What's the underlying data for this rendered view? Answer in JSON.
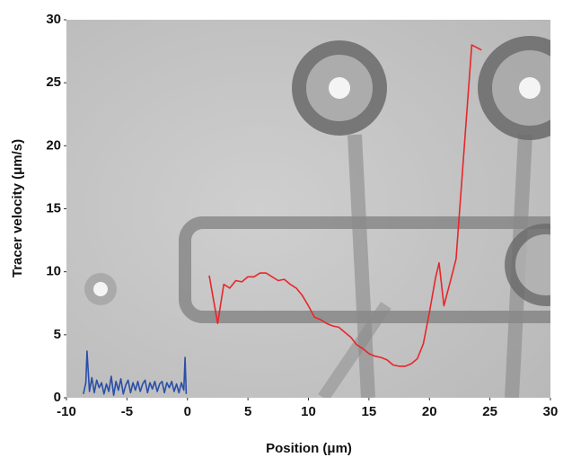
{
  "chart_data": {
    "type": "line",
    "x_label": "Position (μm)",
    "y_label": "Tracer velocity (μm/s)",
    "xlim": [
      -10,
      30
    ],
    "xticks": [
      -10,
      -5,
      0,
      5,
      10,
      15,
      20,
      25,
      30
    ],
    "ylim": [
      0,
      30
    ],
    "yticks": [
      0,
      5,
      10,
      15,
      20,
      25,
      30
    ],
    "series": [
      {
        "color": "#2a4fa8",
        "x": [
          -8.6,
          -8.4,
          -8.3,
          -8.1,
          -7.9,
          -7.7,
          -7.5,
          -7.3,
          -7.1,
          -6.9,
          -6.7,
          -6.5,
          -6.3,
          -6.1,
          -5.9,
          -5.7,
          -5.5,
          -5.3,
          -5.1,
          -4.9,
          -4.7,
          -4.5,
          -4.3,
          -4.1,
          -3.9,
          -3.7,
          -3.5,
          -3.3,
          -3.1,
          -2.9,
          -2.7,
          -2.5,
          -2.3,
          -2.1,
          -1.9,
          -1.7,
          -1.5,
          -1.3,
          -1.1,
          -0.9,
          -0.7,
          -0.5,
          -0.3,
          -0.2,
          -0.1
        ],
        "values": [
          0.3,
          1.2,
          3.7,
          0.5,
          1.6,
          0.4,
          1.4,
          0.8,
          1.2,
          0.3,
          1.1,
          0.5,
          1.7,
          0.2,
          1.3,
          0.6,
          1.5,
          0.3,
          1.0,
          1.4,
          0.4,
          1.2,
          0.6,
          1.3,
          0.5,
          1.1,
          1.4,
          0.4,
          1.2,
          0.7,
          1.3,
          0.5,
          1.1,
          1.3,
          0.4,
          1.2,
          0.8,
          1.3,
          0.5,
          1.1,
          0.4,
          1.2,
          0.6,
          3.2,
          0.3
        ]
      },
      {
        "color": "#e8262a",
        "x": [
          1.8,
          2.5,
          3,
          3.5,
          4,
          4.5,
          5,
          5.5,
          6,
          6.5,
          7,
          7.5,
          8,
          8.5,
          9,
          9.5,
          10,
          10.5,
          11,
          11.5,
          12,
          12.5,
          13,
          13.5,
          14,
          14.5,
          15,
          15.5,
          16,
          16.5,
          17,
          17.5,
          18,
          18.5,
          19,
          19.5,
          20,
          20.5,
          20.8,
          21.2,
          21.8,
          22.2,
          23.5,
          24.3
        ],
        "values": [
          9.7,
          5.9,
          9.0,
          8.7,
          9.3,
          9.2,
          9.6,
          9.6,
          9.9,
          9.9,
          9.6,
          9.3,
          9.4,
          9.0,
          8.7,
          8.1,
          7.3,
          6.4,
          6.2,
          5.9,
          5.7,
          5.6,
          5.2,
          4.8,
          4.2,
          3.9,
          3.5,
          3.3,
          3.2,
          3.0,
          2.6,
          2.5,
          2.5,
          2.7,
          3.1,
          4.3,
          6.8,
          9.5,
          10.7,
          7.3,
          9.5,
          11.0,
          28.0,
          27.6
        ]
      }
    ]
  }
}
